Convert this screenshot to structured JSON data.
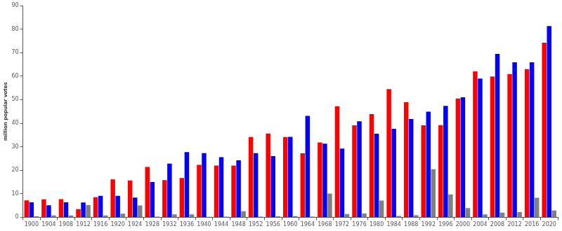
{
  "chart_data": {
    "type": "bar",
    "y_label": "million popular votes",
    "categories": [
      "1900",
      "1904",
      "1908",
      "1912",
      "1916",
      "1920",
      "1924",
      "1928",
      "1932",
      "1936",
      "1940",
      "1944",
      "1948",
      "1952",
      "1956",
      "1960",
      "1964",
      "1968",
      "1972",
      "1976",
      "1980",
      "1984",
      "1988",
      "1992",
      "1996",
      "2000",
      "2004",
      "2008",
      "2012",
      "2016",
      "2020"
    ],
    "series": [
      {
        "color": "#ff0000",
        "values": [
          7.2,
          7.6,
          7.7,
          3.5,
          8.5,
          16.1,
          15.7,
          21.4,
          15.8,
          16.7,
          22.3,
          22.0,
          22.0,
          34.1,
          35.6,
          34.1,
          27.2,
          31.8,
          47.2,
          39.1,
          43.9,
          54.5,
          48.9,
          39.1,
          39.2,
          50.5,
          62.0,
          59.9,
          60.9,
          63.0,
          74.2
        ]
      },
      {
        "color": "#0000ff",
        "values": [
          6.4,
          5.1,
          6.4,
          6.3,
          9.1,
          9.1,
          8.4,
          15.0,
          22.8,
          27.7,
          27.3,
          25.6,
          24.2,
          27.3,
          26.0,
          34.2,
          43.1,
          31.3,
          29.2,
          40.8,
          35.5,
          37.6,
          41.8,
          44.9,
          47.4,
          51.0,
          59.0,
          69.5,
          65.9,
          65.9,
          81.3
        ]
      },
      {
        "color": "#808080",
        "values": [
          0.4,
          0.8,
          0.8,
          5.2,
          0.8,
          1.5,
          5.0,
          0.3,
          1.2,
          1.2,
          0.2,
          0.3,
          2.6,
          0.3,
          0.4,
          0.5,
          0.3,
          10.1,
          1.4,
          1.6,
          7.1,
          0.6,
          0.9,
          20.4,
          9.7,
          3.9,
          1.2,
          2.0,
          2.2,
          8.3,
          2.9
        ]
      }
    ],
    "ylim": [
      0,
      90
    ],
    "yticks": [
      0,
      10,
      20,
      30,
      40,
      50,
      60,
      70,
      80,
      90
    ],
    "grid": false
  }
}
